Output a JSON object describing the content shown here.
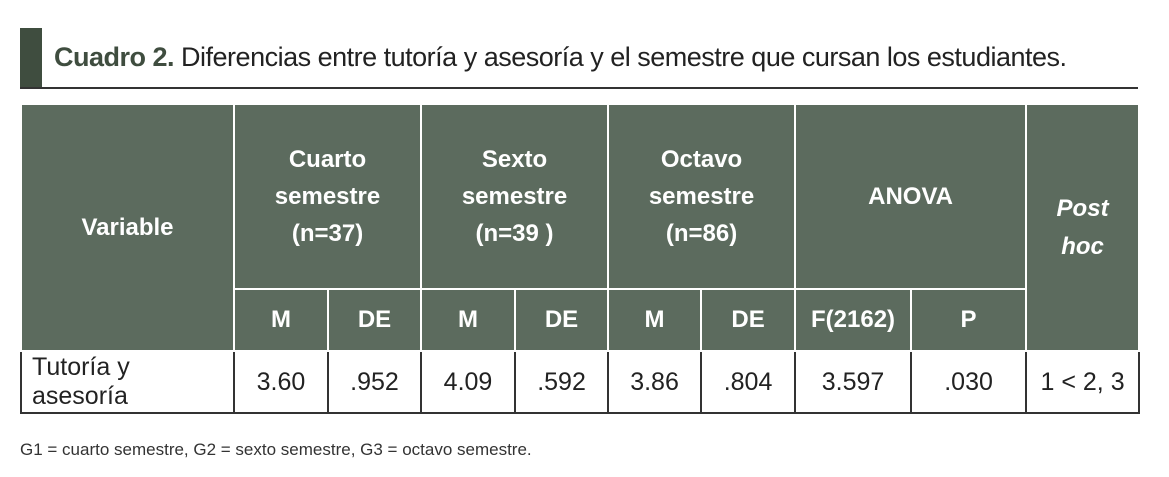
{
  "header": {
    "label": "Cuadro 2.",
    "title": "Diferencias entre tutoría y asesoría y el semestre que cursan los estudiantes."
  },
  "table": {
    "variable_header": "Variable",
    "groups": [
      {
        "lines": [
          "Cuarto",
          "semestre",
          "(n=37)"
        ]
      },
      {
        "lines": [
          "Sexto",
          "semestre",
          "(n=39 )"
        ]
      },
      {
        "lines": [
          "Octavo",
          "semestre",
          "(n=86)"
        ]
      },
      {
        "lines": [
          "ANOVA"
        ]
      }
    ],
    "posthoc_header": [
      "Post",
      "hoc"
    ],
    "subheaders": [
      "M",
      "DE",
      "M",
      "DE",
      "M",
      "DE",
      "F(2162)",
      "P"
    ],
    "rows": [
      [
        "Tutoría y asesoría",
        "3.60",
        ".952",
        "4.09",
        ".592",
        "3.86",
        ".804",
        "3.597",
        ".030",
        "1 < 2, 3"
      ]
    ]
  },
  "footnote": "G1 = cuarto semestre, G2 = sexto semestre, G3 = octavo semestre."
}
